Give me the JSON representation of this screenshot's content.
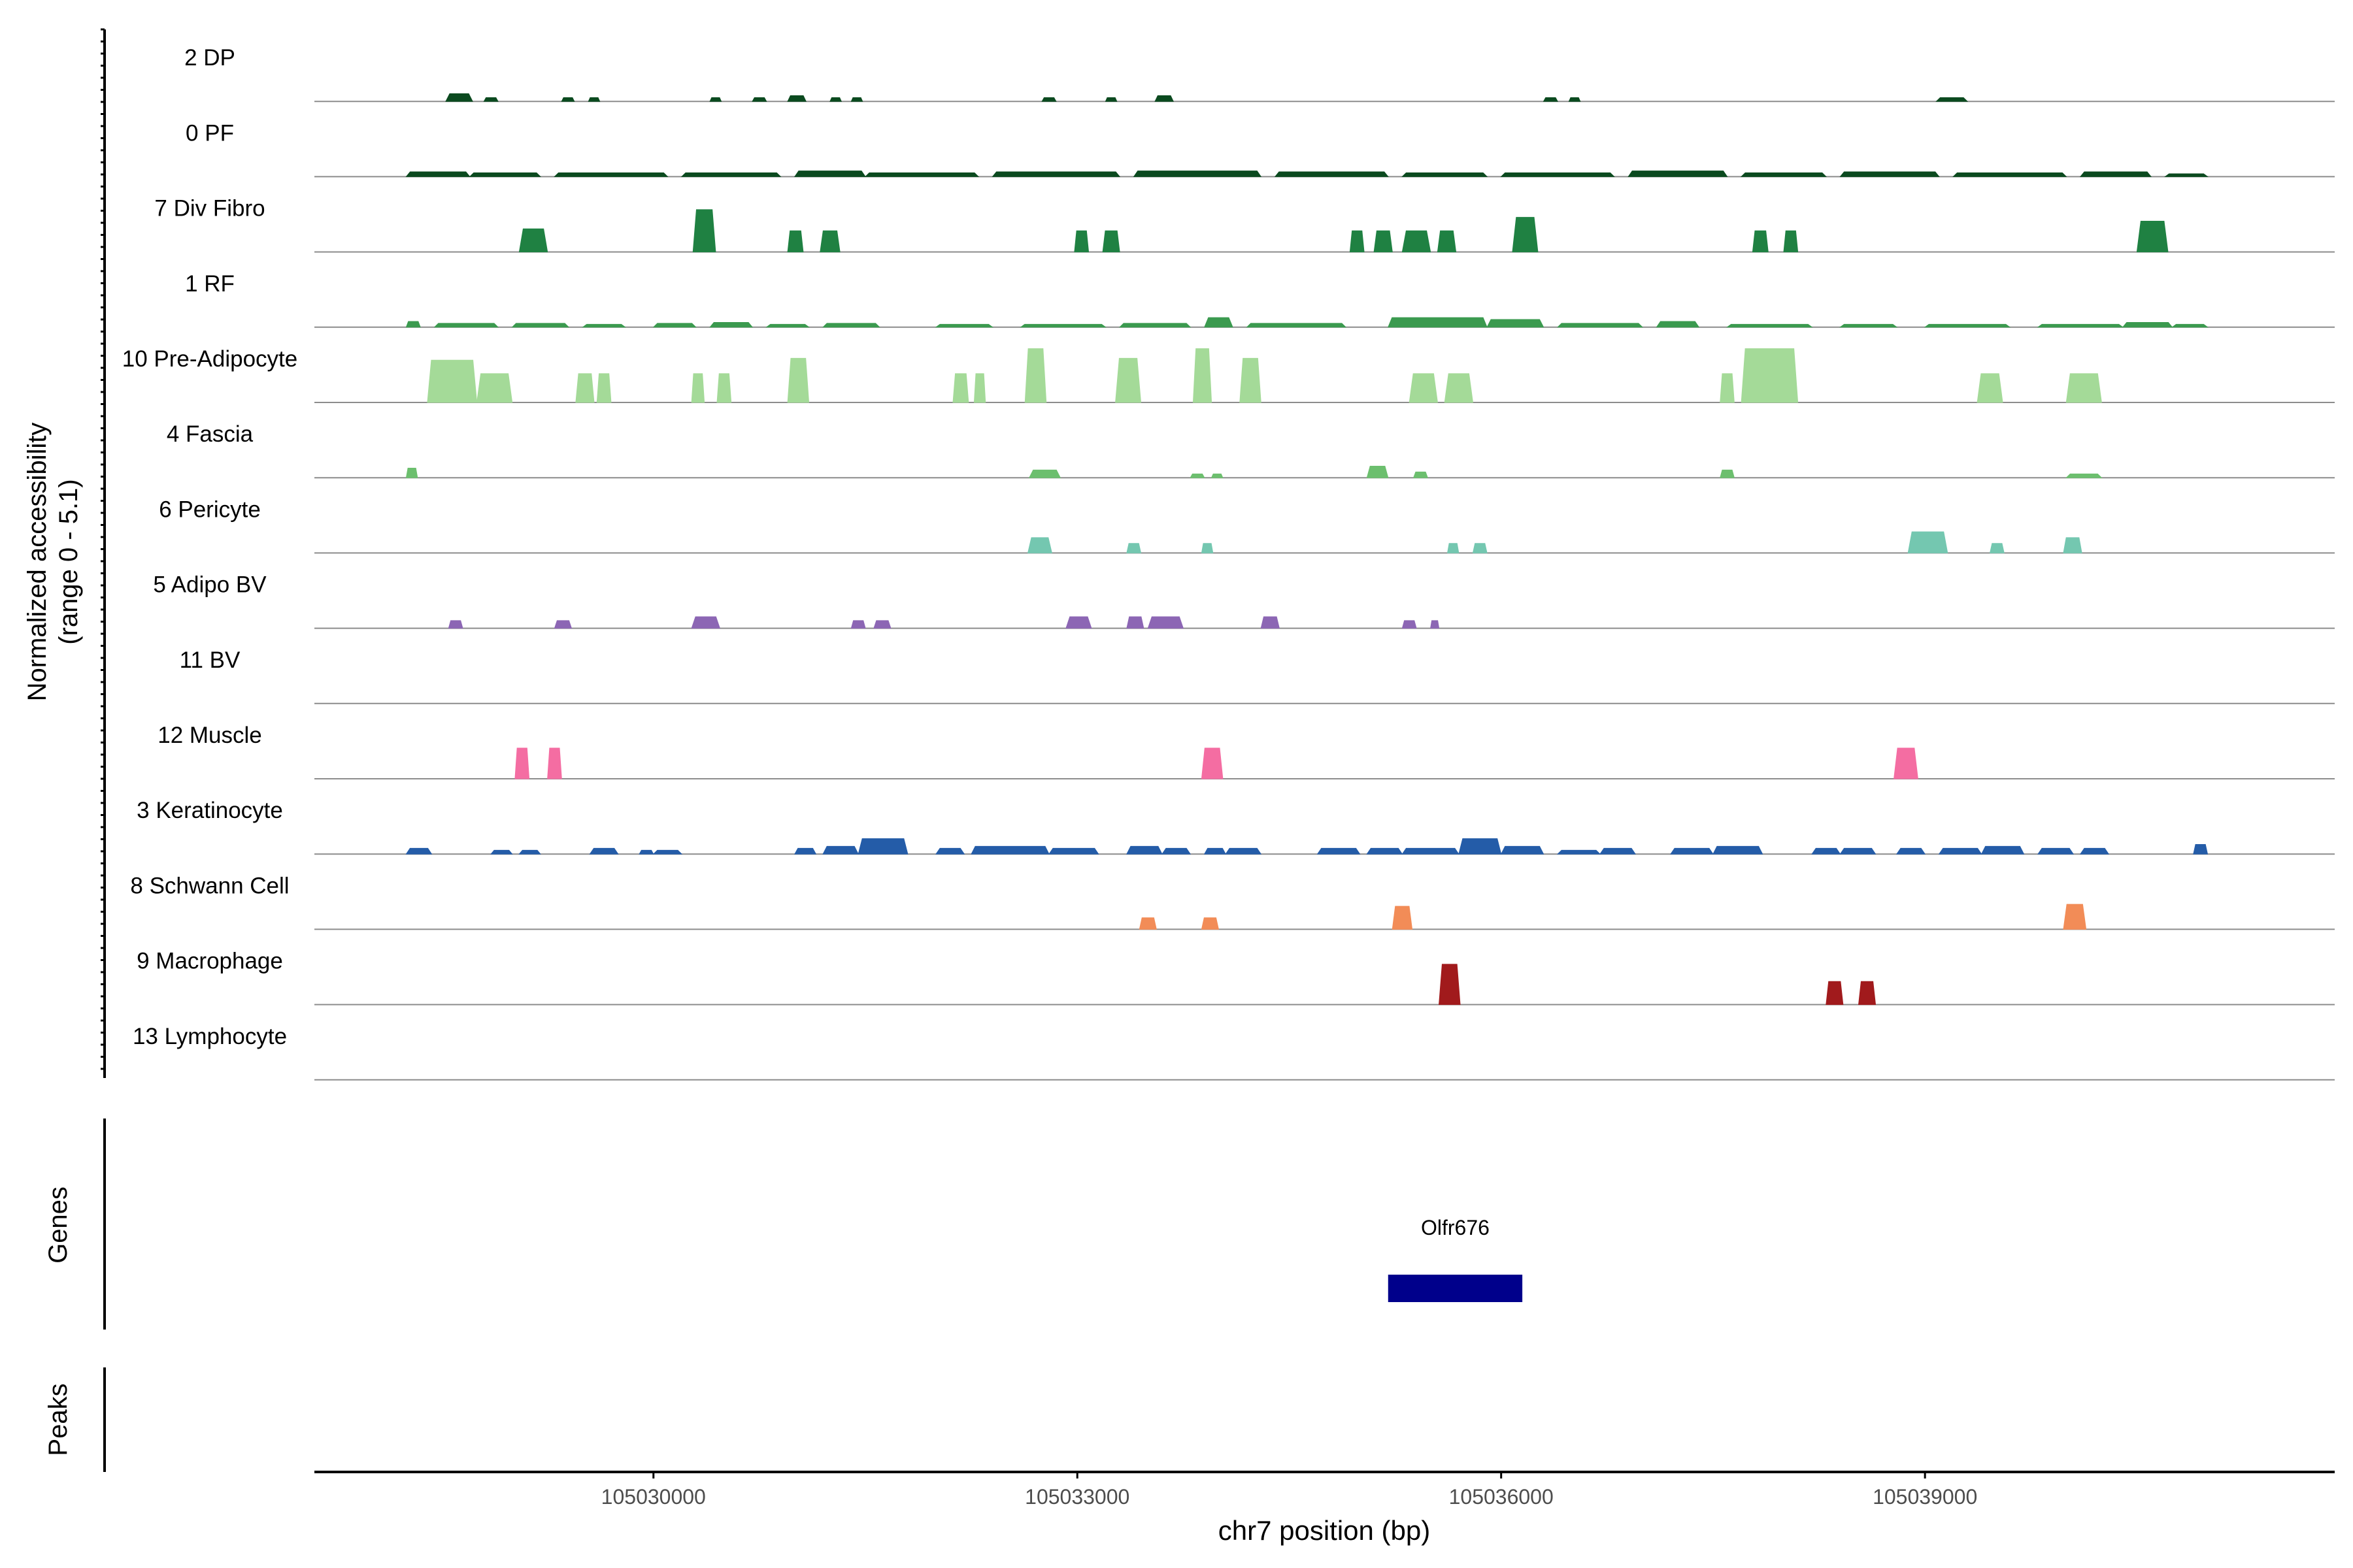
{
  "chart_data": {
    "type": "area",
    "chromosome": "chr7",
    "xlim": [
      105027600,
      105041900
    ],
    "xticks": [
      105030000,
      105033000,
      105036000,
      105039000
    ],
    "xtick_labels": [
      "105030000",
      "105033000",
      "105036000",
      "105039000"
    ],
    "xlabel": "chr7 position (bp)",
    "ylabel_line1": "Normalized accessibility",
    "ylabel_line2": "(range 0 - 5.1)",
    "yrange": [
      0,
      5.1
    ],
    "genes_label": "Genes",
    "peaks_label": "Peaks",
    "tracks": [
      {
        "name": "2 DP",
        "color": "#0b4a1f",
        "peaks": [
          [
            105028530,
            105028720,
            0.4
          ],
          [
            105028800,
            105028900,
            0.2
          ],
          [
            105029350,
            105029440,
            0.2
          ],
          [
            105029540,
            105029620,
            0.2
          ],
          [
            105030400,
            105030480,
            0.2
          ],
          [
            105030700,
            105030800,
            0.2
          ],
          [
            105030950,
            105031080,
            0.3
          ],
          [
            105031250,
            105031330,
            0.2
          ],
          [
            105031400,
            105031480,
            0.2
          ],
          [
            105032750,
            105032850,
            0.2
          ],
          [
            105033200,
            105033280,
            0.2
          ],
          [
            105033550,
            105033680,
            0.3
          ],
          [
            105036300,
            105036400,
            0.2
          ],
          [
            105036480,
            105036560,
            0.2
          ],
          [
            105039080,
            105039300,
            0.2
          ]
        ]
      },
      {
        "name": "0 PF",
        "color": "#0b4a1f",
        "peaks": [
          [
            105028250,
            105028700,
            0.25
          ],
          [
            105028700,
            105029200,
            0.2
          ],
          [
            105029300,
            105030100,
            0.2
          ],
          [
            105030200,
            105030900,
            0.2
          ],
          [
            105031000,
            105031500,
            0.3
          ],
          [
            105031500,
            105032300,
            0.2
          ],
          [
            105032400,
            105033300,
            0.25
          ],
          [
            105033400,
            105034300,
            0.3
          ],
          [
            105034400,
            105035200,
            0.25
          ],
          [
            105035300,
            105035900,
            0.2
          ],
          [
            105036000,
            105036800,
            0.2
          ],
          [
            105036900,
            105037600,
            0.3
          ],
          [
            105037700,
            105038300,
            0.2
          ],
          [
            105038400,
            105039100,
            0.25
          ],
          [
            105039200,
            105040000,
            0.2
          ],
          [
            105040100,
            105040600,
            0.25
          ],
          [
            105040700,
            105041000,
            0.15
          ]
        ]
      },
      {
        "name": "7 Div Fibro",
        "color": "#1f8142",
        "peaks": [
          [
            105029050,
            105029250,
            1.2
          ],
          [
            105030280,
            105030440,
            2.2
          ],
          [
            105030950,
            105031060,
            1.1
          ],
          [
            105031180,
            105031320,
            1.1
          ],
          [
            105032980,
            105033080,
            1.1
          ],
          [
            105033180,
            105033300,
            1.1
          ],
          [
            105034930,
            105035030,
            1.1
          ],
          [
            105035100,
            105035230,
            1.1
          ],
          [
            105035300,
            105035500,
            1.1
          ],
          [
            105035550,
            105035680,
            1.1
          ],
          [
            105036080,
            105036260,
            1.8
          ],
          [
            105037780,
            105037890,
            1.1
          ],
          [
            105038000,
            105038100,
            1.1
          ],
          [
            105040500,
            105040720,
            1.6
          ]
        ]
      },
      {
        "name": "1 RF",
        "color": "#3b9a4f",
        "peaks": [
          [
            105028250,
            105028350,
            0.3
          ],
          [
            105028450,
            105028900,
            0.2
          ],
          [
            105029000,
            105029400,
            0.2
          ],
          [
            105029500,
            105029800,
            0.15
          ],
          [
            105030000,
            105030300,
            0.2
          ],
          [
            105030400,
            105030700,
            0.25
          ],
          [
            105030800,
            105031100,
            0.15
          ],
          [
            105031200,
            105031600,
            0.2
          ],
          [
            105032000,
            105032400,
            0.15
          ],
          [
            105032600,
            105033200,
            0.15
          ],
          [
            105033300,
            105033800,
            0.2
          ],
          [
            105033900,
            105034100,
            0.5
          ],
          [
            105034200,
            105034900,
            0.2
          ],
          [
            105035200,
            105035900,
            0.5
          ],
          [
            105035900,
            105036300,
            0.4
          ],
          [
            105036400,
            105037000,
            0.2
          ],
          [
            105037100,
            105037400,
            0.3
          ],
          [
            105037600,
            105038200,
            0.15
          ],
          [
            105038400,
            105038800,
            0.15
          ],
          [
            105039000,
            105039600,
            0.15
          ],
          [
            105039800,
            105040400,
            0.15
          ],
          [
            105040400,
            105040750,
            0.25
          ],
          [
            105040750,
            105041000,
            0.15
          ]
        ]
      },
      {
        "name": "10 Pre-Adipocyte",
        "color": "#a4da98",
        "peaks": [
          [
            105028400,
            105028750,
            2.2
          ],
          [
            105028750,
            105029000,
            1.5
          ],
          [
            105029450,
            105029580,
            1.5
          ],
          [
            105029600,
            105029700,
            1.5
          ],
          [
            105030270,
            105030360,
            1.5
          ],
          [
            105030450,
            105030550,
            1.5
          ],
          [
            105030950,
            105031100,
            2.3
          ],
          [
            105032120,
            105032230,
            1.5
          ],
          [
            105032270,
            105032350,
            1.5
          ],
          [
            105032630,
            105032780,
            2.8
          ],
          [
            105033270,
            105033450,
            2.3
          ],
          [
            105033820,
            105033950,
            2.8
          ],
          [
            105034150,
            105034300,
            2.3
          ],
          [
            105035350,
            105035550,
            1.5
          ],
          [
            105035600,
            105035800,
            1.5
          ],
          [
            105037550,
            105037650,
            1.5
          ],
          [
            105037700,
            105038100,
            2.8
          ],
          [
            105039370,
            105039550,
            1.5
          ],
          [
            105040000,
            105040250,
            1.5
          ]
        ]
      },
      {
        "name": "4 Fascia",
        "color": "#6cbf6e",
        "peaks": [
          [
            105028250,
            105028330,
            0.5
          ],
          [
            105032660,
            105032880,
            0.4
          ],
          [
            105033800,
            105033900,
            0.2
          ],
          [
            105033950,
            105034030,
            0.2
          ],
          [
            105035050,
            105035200,
            0.6
          ],
          [
            105035380,
            105035480,
            0.3
          ],
          [
            105037550,
            105037650,
            0.4
          ],
          [
            105040000,
            105040250,
            0.2
          ]
        ]
      },
      {
        "name": "6 Pericyte",
        "color": "#74c7b0",
        "peaks": [
          [
            105032650,
            105032820,
            0.8
          ],
          [
            105033350,
            105033450,
            0.5
          ],
          [
            105033880,
            105033960,
            0.5
          ],
          [
            105035620,
            105035700,
            0.5
          ],
          [
            105035800,
            105035900,
            0.5
          ],
          [
            105038880,
            105039160,
            1.1
          ],
          [
            105039460,
            105039560,
            0.5
          ],
          [
            105039980,
            105040110,
            0.8
          ]
        ]
      },
      {
        "name": "5 Adipo BV",
        "color": "#8c66b4",
        "peaks": [
          [
            105028550,
            105028650,
            0.4
          ],
          [
            105029300,
            105029420,
            0.4
          ],
          [
            105030270,
            105030470,
            0.6
          ],
          [
            105031400,
            105031500,
            0.4
          ],
          [
            105031560,
            105031680,
            0.4
          ],
          [
            105032920,
            105033100,
            0.6
          ],
          [
            105033350,
            105033470,
            0.6
          ],
          [
            105033500,
            105033750,
            0.6
          ],
          [
            105034300,
            105034430,
            0.6
          ],
          [
            105035300,
            105035400,
            0.4
          ],
          [
            105035500,
            105035560,
            0.4
          ]
        ]
      },
      {
        "name": "11 BV",
        "color": "#8c66b4",
        "peaks": []
      },
      {
        "name": "12 Muscle",
        "color": "#f46da2",
        "peaks": [
          [
            105029020,
            105029120,
            1.6
          ],
          [
            105029250,
            105029350,
            1.6
          ],
          [
            105033880,
            105034030,
            1.6
          ],
          [
            105038780,
            105038950,
            1.6
          ]
        ]
      },
      {
        "name": "3 Keratinocyte",
        "color": "#245ca8",
        "peaks": [
          [
            105028250,
            105028430,
            0.3
          ],
          [
            105028850,
            105029000,
            0.2
          ],
          [
            105029050,
            105029200,
            0.2
          ],
          [
            105029550,
            105029750,
            0.3
          ],
          [
            105029900,
            105030000,
            0.2
          ],
          [
            105030000,
            105030200,
            0.2
          ],
          [
            105031000,
            105031150,
            0.3
          ],
          [
            105031200,
            105031450,
            0.4
          ],
          [
            105031450,
            105031800,
            0.8
          ],
          [
            105032000,
            105032200,
            0.3
          ],
          [
            105032250,
            105032800,
            0.4
          ],
          [
            105032800,
            105033150,
            0.3
          ],
          [
            105033350,
            105033600,
            0.4
          ],
          [
            105033600,
            105033800,
            0.3
          ],
          [
            105033900,
            105034050,
            0.3
          ],
          [
            105034050,
            105034300,
            0.3
          ],
          [
            105034700,
            105035000,
            0.3
          ],
          [
            105035050,
            105035300,
            0.3
          ],
          [
            105035300,
            105035700,
            0.3
          ],
          [
            105035700,
            105036000,
            0.8
          ],
          [
            105036000,
            105036300,
            0.4
          ],
          [
            105036400,
            105036700,
            0.2
          ],
          [
            105036700,
            105036950,
            0.3
          ],
          [
            105037200,
            105037500,
            0.3
          ],
          [
            105037500,
            105037850,
            0.4
          ],
          [
            105038200,
            105038400,
            0.3
          ],
          [
            105038400,
            105038650,
            0.3
          ],
          [
            105038800,
            105039000,
            0.3
          ],
          [
            105039100,
            105039400,
            0.3
          ],
          [
            105039400,
            105039700,
            0.4
          ],
          [
            105039800,
            105040050,
            0.3
          ],
          [
            105040100,
            105040300,
            0.3
          ],
          [
            105040900,
            105041000,
            0.5
          ]
        ]
      },
      {
        "name": "8 Schwann Cell",
        "color": "#f28c57",
        "peaks": [
          [
            105033440,
            105033560,
            0.6
          ],
          [
            105033880,
            105034000,
            0.6
          ],
          [
            105035230,
            105035370,
            1.2
          ],
          [
            105039980,
            105040140,
            1.3
          ]
        ]
      },
      {
        "name": "9 Macrophage",
        "color": "#a11a1c",
        "peaks": [
          [
            105035560,
            105035710,
            2.1
          ],
          [
            105038300,
            105038420,
            1.2
          ],
          [
            105038530,
            105038650,
            1.2
          ]
        ]
      },
      {
        "name": "13 Lymphocyte",
        "color": "#a11a1c",
        "peaks": []
      }
    ],
    "genes": [
      {
        "name": "Olfr676",
        "start": 105035200,
        "end": 105036150,
        "color": "#00008b"
      }
    ]
  }
}
